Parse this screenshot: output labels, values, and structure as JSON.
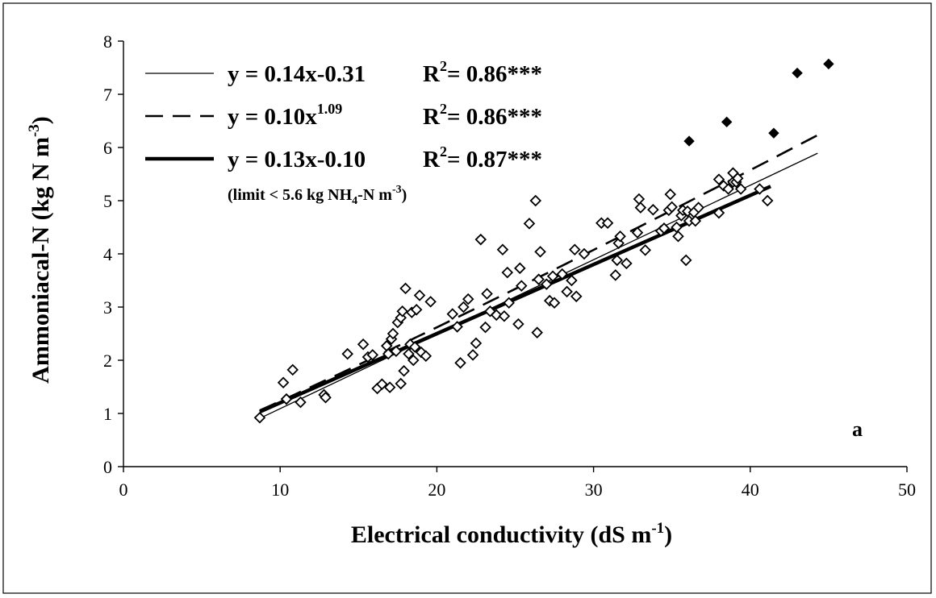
{
  "chart_data": {
    "type": "scatter",
    "xlabel": "Electrical conductivity (dS m",
    "xlabel_sup": "-1",
    "xlabel_close": ")",
    "ylabel": "Ammoniacal-N (kg N m",
    "ylabel_sup": "-3",
    "ylabel_close": ")",
    "xlim": [
      0,
      50
    ],
    "ylim": [
      0,
      8
    ],
    "x_ticks": [
      "0",
      "10",
      "20",
      "30",
      "40",
      "50"
    ],
    "y_ticks": [
      "0",
      "1",
      "2",
      "3",
      "4",
      "5",
      "6",
      "7",
      "8"
    ],
    "panel_label": "a",
    "grid": false,
    "legend_position": "top-left",
    "legend": [
      {
        "style": "thin-solid",
        "eq": "y = 0.14x-0.31",
        "r2_prefix": "R",
        "r2_sup": "2",
        "r2_value": "= 0.86***"
      },
      {
        "style": "dashed",
        "eq": "y = 0.10x",
        "eq_sup": "1.09",
        "r2_prefix": "R",
        "r2_sup": "2",
        "r2_value": "= 0.86***"
      },
      {
        "style": "thick-solid",
        "eq": "y = 0.13x-0.10",
        "r2_prefix": "R",
        "r2_sup": "2",
        "r2_value": "= 0.87***"
      }
    ],
    "legend_note": {
      "prefix": "(limit < 5.6 kg NH",
      "sub": "4",
      "middle": "-N m",
      "sup": "-3",
      "suffix": ")"
    },
    "fit_lines": [
      {
        "style": "thin-solid",
        "model": "linear",
        "slope": 0.14,
        "intercept": -0.31,
        "x_range": [
          8.7,
          44.3
        ]
      },
      {
        "style": "dashed",
        "model": "power",
        "coef": 0.1,
        "exponent": 1.09,
        "x_range": [
          8.7,
          44.3
        ]
      },
      {
        "style": "thick-solid",
        "model": "linear",
        "slope": 0.13,
        "intercept": -0.1,
        "x_range": [
          8.7,
          41.3
        ]
      }
    ],
    "series": [
      {
        "marker": "open-diamond",
        "points": [
          [
            8.7,
            0.92
          ],
          [
            10.2,
            1.58
          ],
          [
            10.4,
            1.27
          ],
          [
            10.8,
            1.82
          ],
          [
            11.3,
            1.21
          ],
          [
            12.8,
            1.35
          ],
          [
            12.9,
            1.3
          ],
          [
            14.3,
            2.12
          ],
          [
            15.3,
            2.3
          ],
          [
            15.6,
            2.06
          ],
          [
            15.9,
            2.1
          ],
          [
            16.2,
            1.47
          ],
          [
            16.5,
            1.55
          ],
          [
            16.8,
            2.27
          ],
          [
            16.9,
            2.12
          ],
          [
            17.0,
            1.49
          ],
          [
            17.1,
            2.4
          ],
          [
            17.2,
            2.5
          ],
          [
            17.4,
            2.17
          ],
          [
            17.5,
            2.71
          ],
          [
            17.7,
            2.8
          ],
          [
            17.7,
            1.56
          ],
          [
            17.8,
            2.92
          ],
          [
            17.9,
            1.8
          ],
          [
            18.0,
            3.35
          ],
          [
            18.2,
            2.12
          ],
          [
            18.3,
            2.3
          ],
          [
            18.4,
            2.9
          ],
          [
            18.5,
            2.0
          ],
          [
            18.6,
            2.25
          ],
          [
            18.7,
            2.95
          ],
          [
            18.9,
            3.22
          ],
          [
            19.0,
            2.15
          ],
          [
            19.3,
            2.08
          ],
          [
            19.6,
            3.1
          ],
          [
            21.0,
            2.87
          ],
          [
            21.3,
            2.63
          ],
          [
            21.5,
            1.95
          ],
          [
            21.7,
            3.0
          ],
          [
            22.0,
            3.15
          ],
          [
            22.3,
            2.1
          ],
          [
            22.5,
            2.32
          ],
          [
            22.8,
            4.27
          ],
          [
            23.1,
            2.62
          ],
          [
            23.2,
            3.25
          ],
          [
            23.4,
            2.92
          ],
          [
            23.8,
            2.85
          ],
          [
            24.2,
            4.08
          ],
          [
            24.3,
            2.83
          ],
          [
            24.5,
            3.65
          ],
          [
            24.6,
            3.08
          ],
          [
            25.2,
            2.68
          ],
          [
            25.3,
            3.73
          ],
          [
            25.4,
            3.4
          ],
          [
            25.9,
            4.57
          ],
          [
            26.3,
            5.0
          ],
          [
            26.4,
            2.52
          ],
          [
            26.5,
            3.52
          ],
          [
            26.6,
            4.04
          ],
          [
            27.0,
            3.43
          ],
          [
            27.2,
            3.12
          ],
          [
            27.4,
            3.58
          ],
          [
            27.5,
            3.08
          ],
          [
            28.0,
            3.62
          ],
          [
            28.3,
            3.29
          ],
          [
            28.6,
            3.5
          ],
          [
            28.8,
            4.08
          ],
          [
            28.9,
            3.2
          ],
          [
            29.4,
            4.0
          ],
          [
            30.5,
            4.58
          ],
          [
            30.9,
            4.58
          ],
          [
            31.4,
            3.6
          ],
          [
            31.5,
            3.88
          ],
          [
            31.6,
            4.2
          ],
          [
            31.7,
            4.33
          ],
          [
            32.1,
            3.82
          ],
          [
            32.8,
            4.4
          ],
          [
            32.9,
            5.03
          ],
          [
            33.0,
            4.87
          ],
          [
            33.3,
            4.07
          ],
          [
            33.8,
            4.83
          ],
          [
            34.3,
            4.43
          ],
          [
            34.5,
            4.48
          ],
          [
            34.8,
            4.82
          ],
          [
            34.9,
            5.12
          ],
          [
            35.0,
            4.88
          ],
          [
            35.3,
            4.5
          ],
          [
            35.4,
            4.33
          ],
          [
            35.6,
            4.72
          ],
          [
            35.7,
            4.82
          ],
          [
            35.9,
            3.88
          ],
          [
            36.0,
            4.8
          ],
          [
            36.1,
            4.62
          ],
          [
            36.4,
            4.78
          ],
          [
            36.5,
            4.62
          ],
          [
            36.7,
            4.87
          ],
          [
            38.0,
            5.4
          ],
          [
            38.0,
            4.77
          ],
          [
            38.3,
            5.28
          ],
          [
            38.6,
            5.22
          ],
          [
            38.9,
            5.35
          ],
          [
            38.9,
            5.52
          ],
          [
            39.1,
            5.35
          ],
          [
            39.2,
            5.42
          ],
          [
            39.4,
            5.22
          ],
          [
            40.6,
            5.22
          ],
          [
            41.1,
            5.0
          ]
        ]
      },
      {
        "marker": "filled-diamond",
        "points": [
          [
            36.1,
            6.12
          ],
          [
            38.5,
            6.48
          ],
          [
            41.5,
            6.27
          ],
          [
            43.0,
            7.4
          ],
          [
            45.0,
            7.57
          ]
        ]
      }
    ]
  }
}
